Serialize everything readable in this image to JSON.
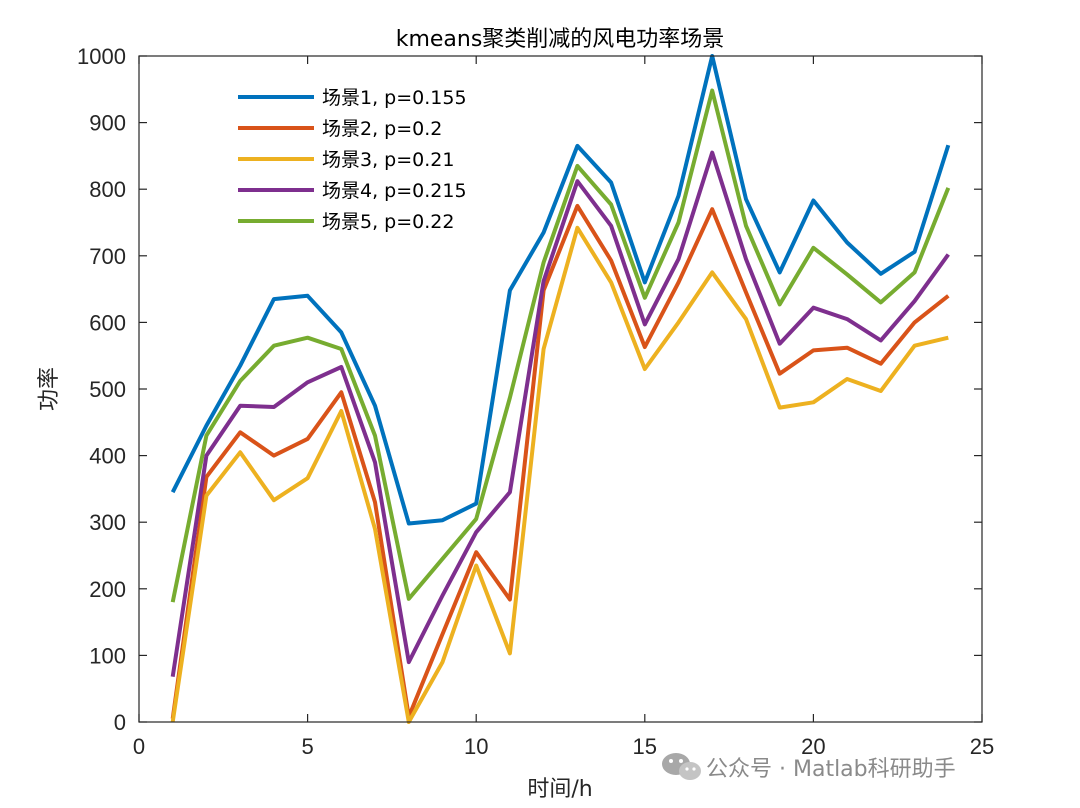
{
  "chart_data": {
    "type": "line",
    "title": "kmeans聚类削减的风电功率场景",
    "xlabel": "时间/h",
    "ylabel": "功率",
    "xlim": [
      0,
      25
    ],
    "ylim": [
      0,
      1000
    ],
    "xticks": [
      0,
      5,
      10,
      15,
      20,
      25
    ],
    "yticks": [
      0,
      100,
      200,
      300,
      400,
      500,
      600,
      700,
      800,
      900,
      1000
    ],
    "grid": false,
    "legend_position": "top-left",
    "x": [
      1,
      2,
      3,
      4,
      5,
      6,
      7,
      8,
      9,
      10,
      11,
      12,
      13,
      14,
      15,
      16,
      17,
      18,
      19,
      20,
      21,
      22,
      23,
      24
    ],
    "series": [
      {
        "name": "场景1, p=0.155",
        "color": "#0072BD",
        "values": [
          345,
          445,
          535,
          635,
          640,
          585,
          475,
          298,
          303,
          328,
          648,
          735,
          865,
          810,
          660,
          790,
          1000,
          785,
          675,
          783,
          720,
          673,
          706,
          866
        ]
      },
      {
        "name": "场景2, p=0.2",
        "color": "#D95319",
        "values": [
          5,
          368,
          435,
          400,
          425,
          495,
          330,
          8,
          132,
          255,
          184,
          648,
          775,
          693,
          563,
          660,
          770,
          645,
          523,
          558,
          562,
          538,
          600,
          640
        ]
      },
      {
        "name": "场景3, p=0.21",
        "color": "#EDB120",
        "values": [
          0,
          340,
          405,
          333,
          366,
          467,
          290,
          0,
          90,
          235,
          103,
          560,
          742,
          660,
          530,
          600,
          675,
          605,
          472,
          480,
          515,
          497,
          565,
          577
        ]
      },
      {
        "name": "场景4, p=0.215",
        "color": "#7E2F8E",
        "values": [
          68,
          400,
          475,
          473,
          510,
          533,
          390,
          90,
          190,
          285,
          345,
          662,
          812,
          745,
          597,
          695,
          855,
          695,
          568,
          622,
          605,
          573,
          632,
          702
        ]
      },
      {
        "name": "场景5, p=0.22",
        "color": "#77AC30",
        "values": [
          180,
          430,
          512,
          565,
          577,
          560,
          430,
          185,
          245,
          305,
          487,
          690,
          835,
          777,
          637,
          750,
          948,
          745,
          627,
          712,
          672,
          630,
          675,
          802
        ]
      }
    ]
  },
  "watermark": {
    "icon": "wechat-icon",
    "text": "公众号 · Matlab科研助手"
  }
}
